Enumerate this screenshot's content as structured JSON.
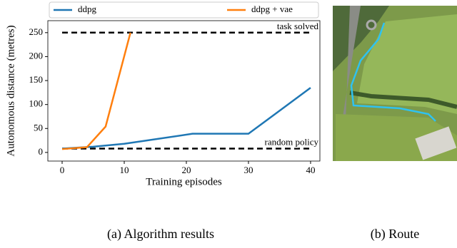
{
  "chart_data": {
    "type": "line",
    "x_label": "Training episodes",
    "y_label": "Autonomous distance (metres)",
    "caption": "(a) Algorithm results",
    "xlim": [
      -2.3,
      41.5
    ],
    "ylim": [
      -18,
      275
    ],
    "xticks": [
      0,
      10,
      20,
      30,
      40
    ],
    "yticks": [
      0,
      50,
      100,
      150,
      200,
      250
    ],
    "grid": false,
    "legend": "top",
    "series": [
      {
        "name": "ddpg",
        "color": "#1f77b4",
        "x": [
          0,
          5,
          10,
          21,
          30,
          40
        ],
        "values": [
          8,
          12,
          18,
          39,
          39,
          135
        ]
      },
      {
        "name": "ddpg + vae",
        "color": "#ff7f0e",
        "x": [
          0,
          4,
          7,
          11
        ],
        "values": [
          7,
          11,
          54,
          250
        ]
      }
    ],
    "reference_lines": [
      {
        "value": 250,
        "label": "task solved"
      },
      {
        "value": 8,
        "label": "random policy"
      }
    ]
  },
  "route_caption": "(b) Route"
}
